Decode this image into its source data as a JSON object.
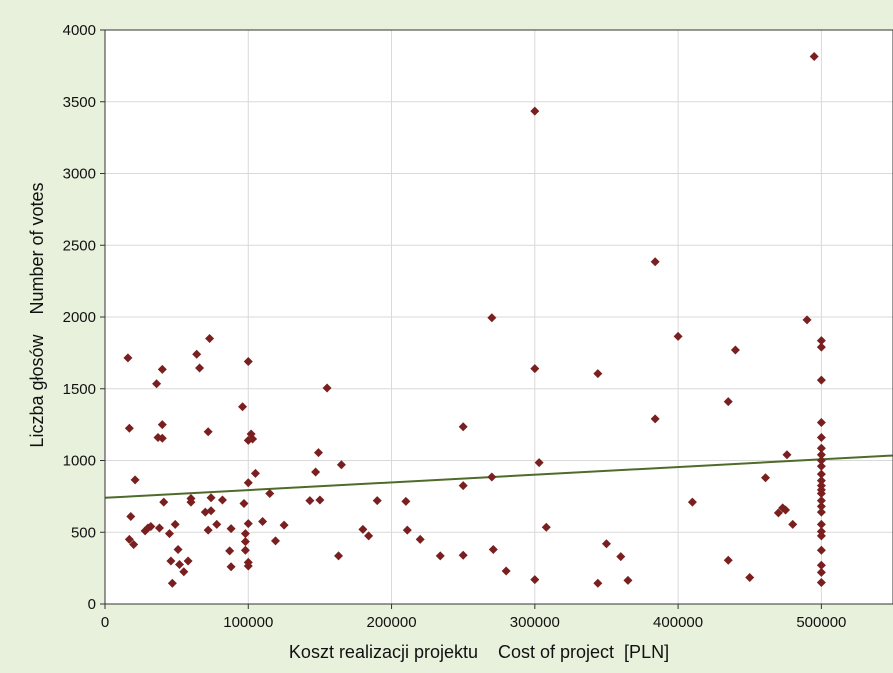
{
  "chart_data": {
    "type": "scatter",
    "title": "",
    "xlabel": "Koszt realizacji projektu    Cost of project  [PLN]",
    "ylabel": "Liczba głosów    Number of votes",
    "xlim": [
      0,
      550000
    ],
    "ylim": [
      0,
      4000
    ],
    "x_ticks": [
      0,
      100000,
      200000,
      300000,
      400000,
      500000
    ],
    "y_ticks": [
      0,
      500,
      1000,
      1500,
      2000,
      2500,
      3000,
      3500,
      4000
    ],
    "grid": true,
    "legend": "none",
    "colors": {
      "background": "#e8f1dc",
      "plot_background": "#ffffff",
      "marker": "#7a1f1f",
      "trendline": "#4f6b2a",
      "grid": "#d9d9d9"
    },
    "trendline": {
      "x": [
        0,
        550000
      ],
      "y": [
        740,
        1035
      ]
    },
    "series": [
      {
        "points": [
          [
            16000,
            1715
          ],
          [
            17000,
            1225
          ],
          [
            17000,
            450
          ],
          [
            18000,
            610
          ],
          [
            20000,
            415
          ],
          [
            21000,
            865
          ],
          [
            28000,
            510
          ],
          [
            30000,
            530
          ],
          [
            32000,
            540
          ],
          [
            36000,
            1535
          ],
          [
            37000,
            1160
          ],
          [
            38000,
            530
          ],
          [
            40000,
            1635
          ],
          [
            40000,
            1250
          ],
          [
            40000,
            1155
          ],
          [
            41000,
            710
          ],
          [
            45000,
            490
          ],
          [
            46000,
            300
          ],
          [
            47000,
            145
          ],
          [
            49000,
            555
          ],
          [
            51000,
            380
          ],
          [
            52000,
            275
          ],
          [
            55000,
            225
          ],
          [
            58000,
            300
          ],
          [
            60000,
            710
          ],
          [
            60000,
            735
          ],
          [
            64000,
            1740
          ],
          [
            66000,
            1645
          ],
          [
            70000,
            640
          ],
          [
            72000,
            515
          ],
          [
            72000,
            1200
          ],
          [
            73000,
            1850
          ],
          [
            74000,
            740
          ],
          [
            74000,
            650
          ],
          [
            78000,
            555
          ],
          [
            82000,
            725
          ],
          [
            87000,
            370
          ],
          [
            88000,
            260
          ],
          [
            88000,
            525
          ],
          [
            96000,
            1375
          ],
          [
            97000,
            700
          ],
          [
            98000,
            490
          ],
          [
            98000,
            435
          ],
          [
            98000,
            375
          ],
          [
            100000,
            1690
          ],
          [
            100000,
            1140
          ],
          [
            100000,
            845
          ],
          [
            100000,
            560
          ],
          [
            100000,
            290
          ],
          [
            100000,
            265
          ],
          [
            102000,
            1185
          ],
          [
            103000,
            1150
          ],
          [
            105000,
            910
          ],
          [
            110000,
            575
          ],
          [
            115000,
            770
          ],
          [
            119000,
            440
          ],
          [
            125000,
            550
          ],
          [
            143000,
            720
          ],
          [
            147000,
            920
          ],
          [
            149000,
            1055
          ],
          [
            150000,
            725
          ],
          [
            155000,
            1505
          ],
          [
            163000,
            335
          ],
          [
            165000,
            970
          ],
          [
            180000,
            520
          ],
          [
            184000,
            475
          ],
          [
            190000,
            720
          ],
          [
            210000,
            715
          ],
          [
            211000,
            515
          ],
          [
            220000,
            450
          ],
          [
            234000,
            335
          ],
          [
            250000,
            1235
          ],
          [
            250000,
            825
          ],
          [
            250000,
            340
          ],
          [
            270000,
            1995
          ],
          [
            270000,
            885
          ],
          [
            271000,
            380
          ],
          [
            280000,
            230
          ],
          [
            300000,
            3435
          ],
          [
            300000,
            1640
          ],
          [
            300000,
            170
          ],
          [
            303000,
            985
          ],
          [
            308000,
            535
          ],
          [
            344000,
            1605
          ],
          [
            344000,
            145
          ],
          [
            350000,
            420
          ],
          [
            360000,
            330
          ],
          [
            365000,
            165
          ],
          [
            384000,
            2385
          ],
          [
            384000,
            1290
          ],
          [
            400000,
            1865
          ],
          [
            410000,
            710
          ],
          [
            435000,
            1410
          ],
          [
            435000,
            305
          ],
          [
            440000,
            1770
          ],
          [
            450000,
            185
          ],
          [
            461000,
            880
          ],
          [
            470000,
            635
          ],
          [
            473000,
            670
          ],
          [
            475000,
            655
          ],
          [
            476000,
            1040
          ],
          [
            480000,
            555
          ],
          [
            490000,
            1980
          ],
          [
            495000,
            3815
          ],
          [
            500000,
            1835
          ],
          [
            500000,
            1790
          ],
          [
            500000,
            1560
          ],
          [
            500000,
            1265
          ],
          [
            500000,
            1160
          ],
          [
            500000,
            1085
          ],
          [
            500000,
            1040
          ],
          [
            500000,
            1000
          ],
          [
            500000,
            960
          ],
          [
            500000,
            905
          ],
          [
            500000,
            860
          ],
          [
            500000,
            825
          ],
          [
            500000,
            795
          ],
          [
            500000,
            770
          ],
          [
            500000,
            720
          ],
          [
            500000,
            680
          ],
          [
            500000,
            640
          ],
          [
            500000,
            555
          ],
          [
            500000,
            505
          ],
          [
            500000,
            475
          ],
          [
            500000,
            375
          ],
          [
            500000,
            270
          ],
          [
            500000,
            220
          ],
          [
            500000,
            150
          ]
        ]
      }
    ]
  }
}
